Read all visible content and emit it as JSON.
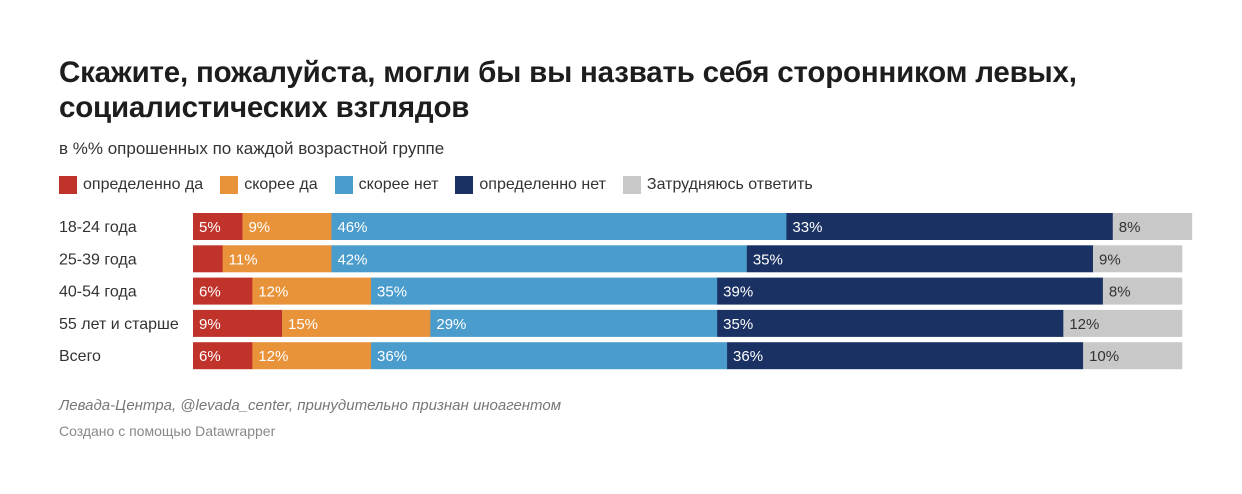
{
  "header": {
    "title": "Скажите, пожалуйста, могли бы вы назвать себя сторонником левых, социалистических взглядов",
    "subtitle": "в %% опрошенных по каждой возрастной группе"
  },
  "footer": {
    "source": "Левада-Центра, @levada_center, принудительно признан иноагентом",
    "credit": "Создано с помощью Datawrapper"
  },
  "chart_data": {
    "type": "bar",
    "orientation": "horizontal",
    "stacked": true,
    "title": "Скажите, пожалуйста, могли бы вы назвать себя сторонником левых, социалистических взглядов",
    "subtitle": "в %% опрошенных по каждой возрастной группе",
    "categories": [
      "18-24 года",
      "25-39 года",
      "40-54 года",
      "55 лет и старше",
      "Всего"
    ],
    "series": [
      {
        "name": "определенно да",
        "color": "#c0332b",
        "values": [
          5,
          3,
          6,
          9,
          6
        ],
        "labels": [
          "5%",
          "",
          "6%",
          "9%",
          "6%"
        ]
      },
      {
        "name": "скорее да",
        "color": "#e8923a",
        "values": [
          9,
          11,
          12,
          15,
          12
        ],
        "labels": [
          "9%",
          "11%",
          "12%",
          "15%",
          "12%"
        ]
      },
      {
        "name": "скорее нет",
        "color": "#4a9ccc",
        "values": [
          46,
          42,
          35,
          29,
          36
        ],
        "labels": [
          "46%",
          "42%",
          "35%",
          "29%",
          "36%"
        ]
      },
      {
        "name": "определенно нет",
        "color": "#1a3263",
        "values": [
          33,
          35,
          39,
          35,
          36
        ],
        "labels": [
          "33%",
          "35%",
          "39%",
          "35%",
          "36%"
        ]
      },
      {
        "name": "Затрудняюсь ответить",
        "color": "#c8c8c8",
        "values": [
          8,
          9,
          8,
          12,
          10
        ],
        "labels": [
          "8%",
          "9%",
          "8%",
          "12%",
          "10%"
        ]
      }
    ],
    "xlim": [
      0,
      100
    ],
    "legend_position": "top-left",
    "grid": false
  }
}
